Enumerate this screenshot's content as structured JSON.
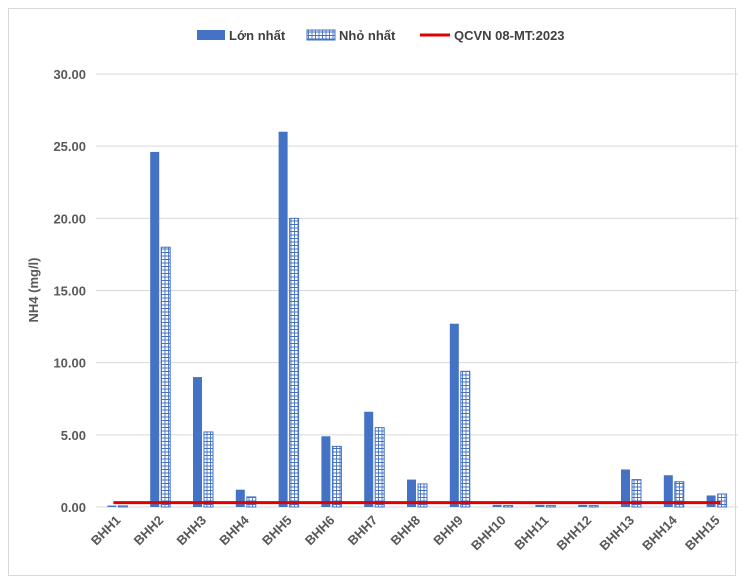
{
  "chart_data": {
    "type": "bar",
    "title": "",
    "xlabel": "",
    "ylabel": "NH4 (mg/l)",
    "ylim": [
      0,
      30
    ],
    "yticks": [
      "0.00",
      "5.00",
      "10.00",
      "15.00",
      "20.00",
      "25.00",
      "30.00"
    ],
    "grid": true,
    "legend_position": "top",
    "categories": [
      "BHH1",
      "BHH2",
      "BHH3",
      "BHH4",
      "BHH5",
      "BHH6",
      "BHH7",
      "BHH8",
      "BHH9",
      "BHH10",
      "BHH11",
      "BHH12",
      "BHH13",
      "BHH14",
      "BHH15"
    ],
    "series": [
      {
        "name": "Lớn nhất",
        "style": "solid",
        "color": "#4472c4",
        "values": [
          0.1,
          24.6,
          9.0,
          1.2,
          26.0,
          4.9,
          6.6,
          1.9,
          12.7,
          0.15,
          0.15,
          0.15,
          2.6,
          2.2,
          0.8
        ]
      },
      {
        "name": "Nhỏ nhất",
        "style": "hatched",
        "color": "#4472c4",
        "values": [
          0.08,
          18.0,
          5.2,
          0.7,
          20.0,
          4.2,
          5.5,
          1.6,
          9.4,
          0.1,
          0.1,
          0.1,
          1.9,
          1.75,
          0.9
        ]
      }
    ],
    "reference_line": {
      "name": "QCVN 08-MT:2023",
      "color": "#e00000",
      "value": 0.3
    }
  }
}
